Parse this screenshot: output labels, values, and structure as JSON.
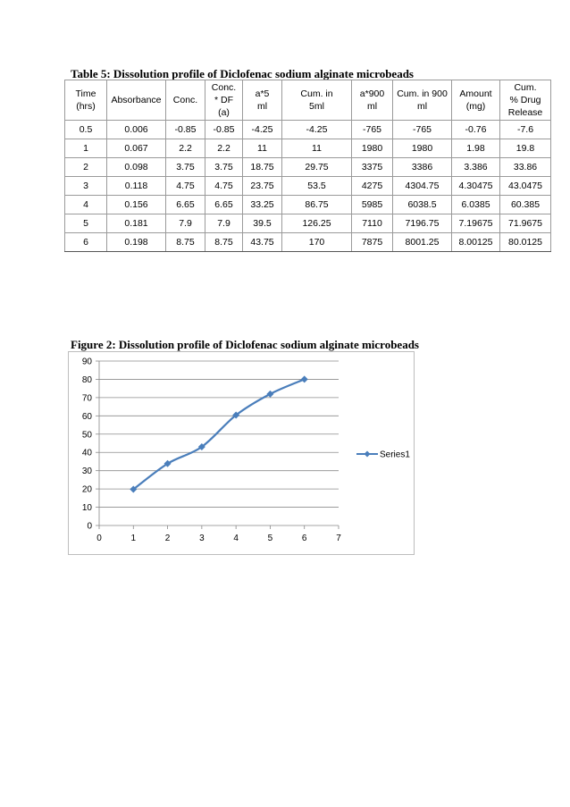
{
  "table": {
    "caption": "Table 5: Dissolution profile of Diclofenac sodium alginate microbeads",
    "headers": [
      [
        "Time",
        "(hrs)"
      ],
      [
        "Absorbance"
      ],
      [
        "Conc."
      ],
      [
        "Conc.",
        "* DF",
        "(a)"
      ],
      [
        "a*5",
        "ml"
      ],
      [
        "Cum. in",
        "5ml"
      ],
      [
        "a*900",
        "ml"
      ],
      [
        "Cum. in 900",
        "ml"
      ],
      [
        "Amount",
        "(mg)"
      ],
      [
        "Cum.",
        "% Drug",
        "Release"
      ]
    ],
    "rows": [
      [
        "0.5",
        "0.006",
        "-0.85",
        "-0.85",
        "-4.25",
        "-4.25",
        "-765",
        "-765",
        "-0.76",
        "-7.6"
      ],
      [
        "1",
        "0.067",
        "2.2",
        "2.2",
        "11",
        "11",
        "1980",
        "1980",
        "1.98",
        "19.8"
      ],
      [
        "2",
        "0.098",
        "3.75",
        "3.75",
        "18.75",
        "29.75",
        "3375",
        "3386",
        "3.386",
        "33.86"
      ],
      [
        "3",
        "0.118",
        "4.75",
        "4.75",
        "23.75",
        "53.5",
        "4275",
        "4304.75",
        "4.30475",
        "43.0475"
      ],
      [
        "4",
        "0.156",
        "6.65",
        "6.65",
        "33.25",
        "86.75",
        "5985",
        "6038.5",
        "6.0385",
        "60.385"
      ],
      [
        "5",
        "0.181",
        "7.9",
        "7.9",
        "39.5",
        "126.25",
        "7110",
        "7196.75",
        "7.19675",
        "71.9675"
      ],
      [
        "6",
        "0.198",
        "8.75",
        "8.75",
        "43.75",
        "170",
        "7875",
        "8001.25",
        "8.00125",
        "80.0125"
      ]
    ]
  },
  "figure": {
    "caption": "Figure 2: Dissolution profile of Diclofenac sodium alginate microbeads"
  },
  "chart_data": {
    "type": "line",
    "title": "",
    "xlabel": "",
    "ylabel": "",
    "xlim": [
      0,
      7
    ],
    "ylim": [
      0,
      90
    ],
    "x_ticks": [
      "0",
      "1",
      "2",
      "3",
      "4",
      "5",
      "6",
      "7"
    ],
    "y_ticks": [
      "0",
      "10",
      "20",
      "30",
      "40",
      "50",
      "60",
      "70",
      "80",
      "90"
    ],
    "grid": "horizontal",
    "legend_position": "right",
    "series": [
      {
        "name": "Series1",
        "color": "#4a7ebb",
        "marker": "diamond",
        "smooth": true,
        "x": [
          1,
          2,
          3,
          4,
          5,
          6
        ],
        "y": [
          19.8,
          33.86,
          43.0475,
          60.385,
          71.9675,
          80.0125
        ]
      }
    ]
  }
}
